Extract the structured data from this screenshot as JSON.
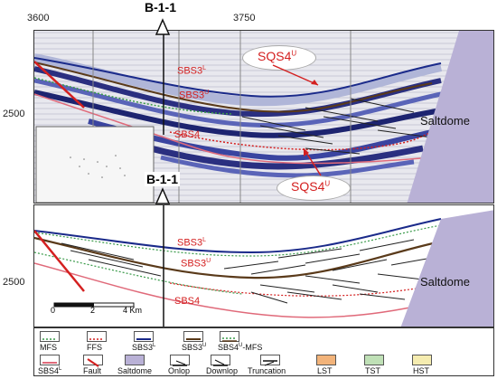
{
  "axis": {
    "x_labels": [
      "3600",
      "3750"
    ],
    "y_label_top": "2500",
    "y_label_bottom": "2500"
  },
  "well": {
    "name_top": "B-1-1",
    "name_bottom": "B-1-1"
  },
  "seismic_panel": {
    "labels": {
      "sbs3l": "SBS3",
      "sbs3l_sup": "L",
      "sbs3u": "SBS3",
      "sbs3u_sup": "U",
      "sbs4": "SBS4",
      "sqs4u_top": "SQS4",
      "sqs4u_top_sup": "U",
      "sqs4u_bottom": "SQS4",
      "sqs4u_bottom_sup": "U",
      "saltdome": "Saltdome"
    }
  },
  "interpretation_panel": {
    "labels": {
      "sbs3l": "SBS3",
      "sbs3l_sup": "L",
      "sbs3u": "SBS3",
      "sbs3u_sup": "U",
      "sbs4": "SBS4",
      "saltdome": "Saltdome"
    },
    "scale_bar": {
      "v0": "0",
      "v1": "2",
      "v2": "4 Km"
    }
  },
  "legend": {
    "row1": [
      {
        "label": "MFS",
        "icon": "mfs-line-icon"
      },
      {
        "label": "FFS",
        "icon": "ffs-line-icon"
      },
      {
        "label": "SBS3",
        "sup": "L",
        "icon": "sbs3l-line-icon"
      },
      {
        "label": "SBS3",
        "sup": "U",
        "icon": "sbs3u-line-icon"
      },
      {
        "label": "SBS4",
        "sup": "U",
        "suffix": "-MFS",
        "icon": "sbs4u-mfs-line-icon"
      }
    ],
    "row2": [
      {
        "label": "SBS4",
        "sup": "L",
        "icon": "sbs4l-line-icon"
      },
      {
        "label": "Fault",
        "icon": "fault-icon"
      },
      {
        "label": "Saltdome",
        "icon": "saltdome-swatch-icon"
      },
      {
        "label": "Onlop",
        "icon": "onlap-icon"
      },
      {
        "label": "Downlop",
        "icon": "downlap-icon"
      },
      {
        "label": "Truncation",
        "icon": "truncation-icon"
      },
      {
        "label": "LST",
        "icon": "lst-swatch-icon"
      },
      {
        "label": "TST",
        "icon": "tst-swatch-icon"
      },
      {
        "label": "HST",
        "icon": "hst-swatch-icon"
      }
    ],
    "colors": {
      "mfs": "#3a9a4a",
      "ffs": "#d42020",
      "sbs3l": "#1a2a8a",
      "sbs3u": "#5a3a1a",
      "sbs4l": "#e06a7a",
      "fault": "#d42020",
      "saltdome": "#b9b1d6",
      "lst": "#f2b37a",
      "tst": "#bfe0b6",
      "hst": "#f5ecb0"
    }
  }
}
